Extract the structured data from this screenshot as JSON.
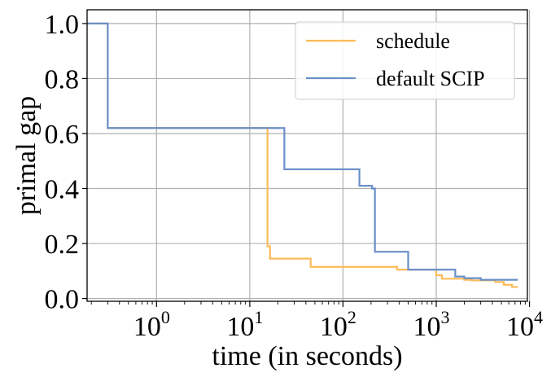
{
  "chart_data": {
    "type": "line",
    "title": "",
    "xlabel": "time (in seconds)",
    "ylabel": "primal gap",
    "xscale": "log",
    "xlim": [
      0.18,
      9500
    ],
    "ylim": [
      -0.01,
      1.05
    ],
    "x_ticks": [
      {
        "value": 1,
        "base": "10",
        "exp": "0"
      },
      {
        "value": 10,
        "base": "10",
        "exp": "1"
      },
      {
        "value": 100,
        "base": "10",
        "exp": "2"
      },
      {
        "value": 1000,
        "base": "10",
        "exp": "3"
      },
      {
        "value": 10000,
        "base": "10",
        "exp": "4"
      }
    ],
    "y_ticks": [
      {
        "value": 0.0,
        "label": "0.0"
      },
      {
        "value": 0.2,
        "label": "0.2"
      },
      {
        "value": 0.4,
        "label": "0.4"
      },
      {
        "value": 0.6,
        "label": "0.6"
      },
      {
        "value": 0.8,
        "label": "0.8"
      },
      {
        "value": 1.0,
        "label": "1.0"
      }
    ],
    "grid": true,
    "legend_position": "top-right",
    "series": [
      {
        "name": "schedule",
        "color": "#fdbb58",
        "points": [
          [
            0.18,
            1.0
          ],
          [
            0.3,
            1.0
          ],
          [
            0.3,
            0.62
          ],
          [
            15.5,
            0.62
          ],
          [
            15.5,
            0.19
          ],
          [
            16.5,
            0.19
          ],
          [
            16.5,
            0.145
          ],
          [
            45,
            0.145
          ],
          [
            45,
            0.115
          ],
          [
            380,
            0.115
          ],
          [
            380,
            0.105
          ],
          [
            1000,
            0.105
          ],
          [
            1000,
            0.085
          ],
          [
            1150,
            0.085
          ],
          [
            1150,
            0.072
          ],
          [
            2000,
            0.072
          ],
          [
            2000,
            0.068
          ],
          [
            2400,
            0.068
          ],
          [
            2400,
            0.066
          ],
          [
            4300,
            0.066
          ],
          [
            4300,
            0.06
          ],
          [
            5300,
            0.06
          ],
          [
            5300,
            0.05
          ],
          [
            6500,
            0.05
          ],
          [
            6500,
            0.042
          ],
          [
            7500,
            0.042
          ]
        ]
      },
      {
        "name": "default SCIP",
        "color": "#6a8fc8",
        "points": [
          [
            0.18,
            1.0
          ],
          [
            0.3,
            1.0
          ],
          [
            0.3,
            0.62
          ],
          [
            23.5,
            0.62
          ],
          [
            23.5,
            0.47
          ],
          [
            150,
            0.47
          ],
          [
            150,
            0.41
          ],
          [
            205,
            0.41
          ],
          [
            205,
            0.4
          ],
          [
            220,
            0.4
          ],
          [
            220,
            0.17
          ],
          [
            500,
            0.17
          ],
          [
            500,
            0.105
          ],
          [
            1600,
            0.105
          ],
          [
            1600,
            0.08
          ],
          [
            2000,
            0.08
          ],
          [
            2000,
            0.074
          ],
          [
            3000,
            0.074
          ],
          [
            3000,
            0.068
          ],
          [
            7500,
            0.068
          ]
        ]
      }
    ]
  }
}
